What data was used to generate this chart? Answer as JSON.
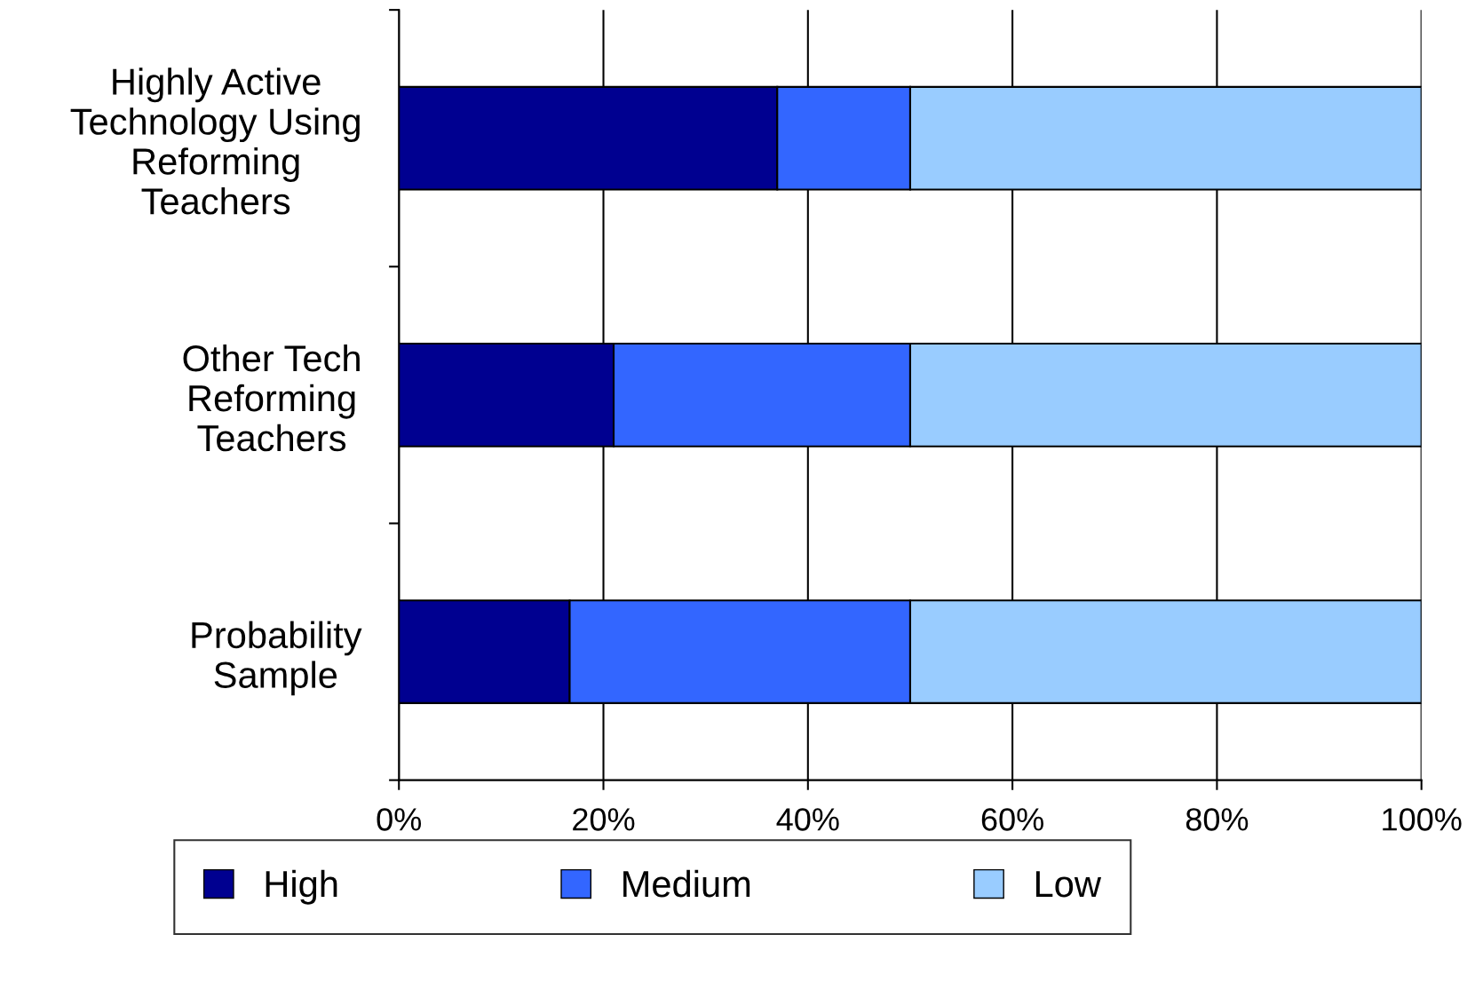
{
  "chart_data": {
    "type": "bar",
    "orientation": "horizontal",
    "stacked": true,
    "categories": [
      "Highly Active\nTechnology Using\nReforming\nTeachers",
      "Other Tech\nReforming\nTeachers",
      "Probability\nSample"
    ],
    "series": [
      {
        "name": "High",
        "color": "#000090",
        "values": [
          37,
          21,
          16.7
        ]
      },
      {
        "name": "Medium",
        "color": "#3366ff",
        "values": [
          13,
          29,
          33.3
        ]
      },
      {
        "name": "Low",
        "color": "#99ccff",
        "values": [
          50,
          50,
          50
        ]
      }
    ],
    "xlim": [
      0,
      100
    ],
    "xticks": [
      {
        "value": 0,
        "label": "0%"
      },
      {
        "value": 20,
        "label": "20%"
      },
      {
        "value": 40,
        "label": "40%"
      },
      {
        "value": 60,
        "label": "60%"
      },
      {
        "value": 80,
        "label": "80%"
      },
      {
        "value": 100,
        "label": "100%"
      }
    ],
    "grid": "x",
    "legend": "bottom"
  }
}
